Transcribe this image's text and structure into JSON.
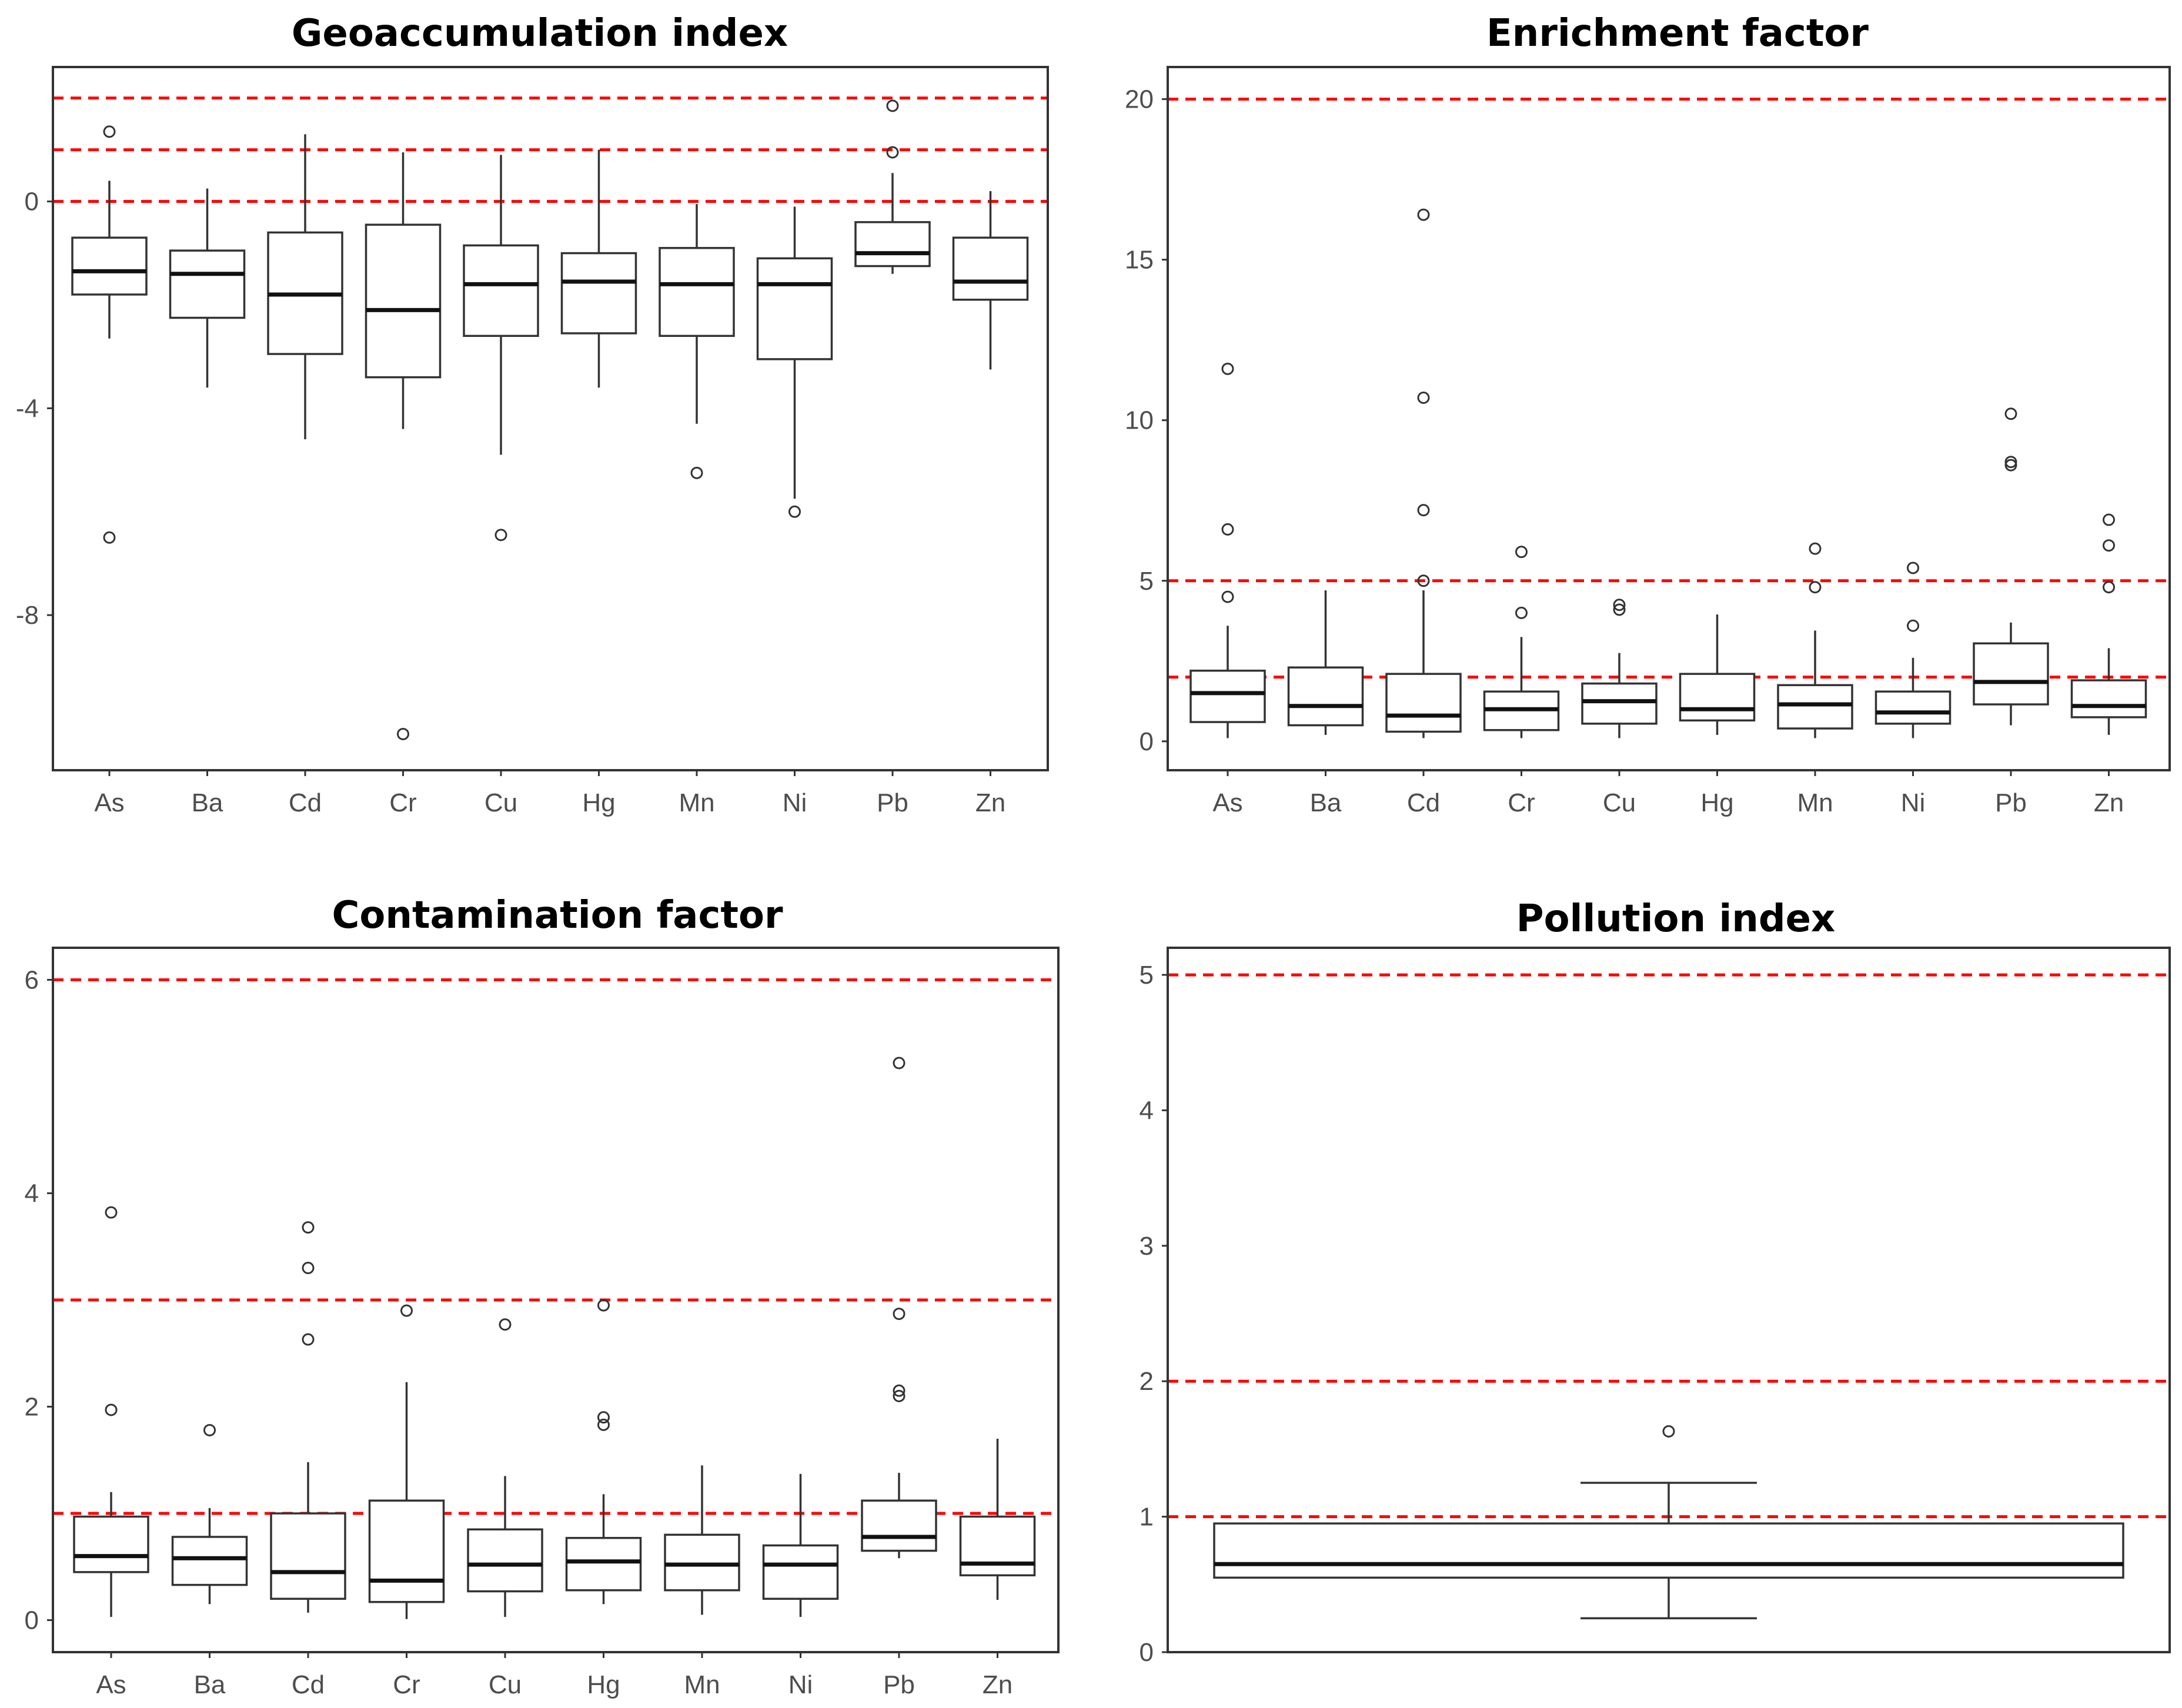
{
  "colors": {
    "reference_line": "#ff0000",
    "box_stroke": "#333333",
    "tick_text": "#4d4d4d"
  },
  "chart_data": [
    {
      "type": "box",
      "title": "Geoaccumulation index",
      "categories": [
        "As",
        "Ba",
        "Cd",
        "Cr",
        "Cu",
        "Hg",
        "Mn",
        "Ni",
        "Pb",
        "Zn"
      ],
      "ylim": [
        -11,
        2.6
      ],
      "yticks": [
        0,
        -4,
        -8
      ],
      "reference_lines": [
        0,
        1,
        2
      ],
      "boxes": [
        {
          "min": -2.65,
          "q1": -1.8,
          "median": -1.35,
          "q3": -0.7,
          "max": 0.4,
          "outliers": [
            1.35,
            -6.5
          ]
        },
        {
          "min": -3.6,
          "q1": -2.25,
          "median": -1.4,
          "q3": -0.95,
          "max": 0.25,
          "outliers": []
        },
        {
          "min": -4.6,
          "q1": -2.95,
          "median": -1.8,
          "q3": -0.6,
          "max": 1.3,
          "outliers": []
        },
        {
          "min": -4.4,
          "q1": -3.4,
          "median": -2.1,
          "q3": -0.45,
          "max": 0.95,
          "outliers": [
            -10.3
          ]
        },
        {
          "min": -4.9,
          "q1": -2.6,
          "median": -1.6,
          "q3": -0.85,
          "max": 0.9,
          "outliers": [
            -6.45
          ]
        },
        {
          "min": -3.6,
          "q1": -2.55,
          "median": -1.55,
          "q3": -1.0,
          "max": 1.0,
          "outliers": []
        },
        {
          "min": -4.3,
          "q1": -2.6,
          "median": -1.6,
          "q3": -0.9,
          "max": -0.05,
          "outliers": [
            -5.25
          ]
        },
        {
          "min": -5.75,
          "q1": -3.05,
          "median": -1.6,
          "q3": -1.1,
          "max": -0.1,
          "outliers": [
            -6.0
          ]
        },
        {
          "min": -1.4,
          "q1": -1.25,
          "median": -1.0,
          "q3": -0.4,
          "max": 0.55,
          "outliers": [
            0.95,
            1.85
          ]
        },
        {
          "min": -3.25,
          "q1": -1.9,
          "median": -1.55,
          "q3": -0.7,
          "max": 0.2,
          "outliers": []
        }
      ]
    },
    {
      "type": "box",
      "title": "Enrichment factor",
      "categories": [
        "As",
        "Ba",
        "Cd",
        "Cr",
        "Cu",
        "Hg",
        "Mn",
        "Ni",
        "Pb",
        "Zn"
      ],
      "ylim": [
        -0.9,
        21
      ],
      "yticks": [
        0,
        5,
        10,
        15,
        20
      ],
      "reference_lines": [
        2,
        5,
        20
      ],
      "boxes": [
        {
          "min": 0.1,
          "q1": 0.6,
          "median": 1.5,
          "q3": 2.2,
          "max": 3.6,
          "outliers": [
            4.5,
            6.6,
            11.6
          ]
        },
        {
          "min": 0.2,
          "q1": 0.5,
          "median": 1.1,
          "q3": 2.3,
          "max": 4.7,
          "outliers": []
        },
        {
          "min": 0.1,
          "q1": 0.3,
          "median": 0.8,
          "q3": 2.1,
          "max": 4.7,
          "outliers": [
            5.0,
            7.2,
            10.7,
            16.4
          ]
        },
        {
          "min": 0.1,
          "q1": 0.35,
          "median": 1.0,
          "q3": 1.55,
          "max": 3.25,
          "outliers": [
            4.0,
            5.9
          ]
        },
        {
          "min": 0.1,
          "q1": 0.55,
          "median": 1.25,
          "q3": 1.8,
          "max": 2.75,
          "outliers": [
            4.1,
            4.25
          ]
        },
        {
          "min": 0.2,
          "q1": 0.65,
          "median": 1.0,
          "q3": 2.1,
          "max": 3.95,
          "outliers": []
        },
        {
          "min": 0.1,
          "q1": 0.4,
          "median": 1.15,
          "q3": 1.75,
          "max": 3.45,
          "outliers": [
            4.8,
            6.0
          ]
        },
        {
          "min": 0.1,
          "q1": 0.55,
          "median": 0.9,
          "q3": 1.55,
          "max": 2.6,
          "outliers": [
            3.6,
            5.4
          ]
        },
        {
          "min": 0.5,
          "q1": 1.15,
          "median": 1.85,
          "q3": 3.05,
          "max": 3.7,
          "outliers": [
            8.6,
            8.7,
            10.2
          ]
        },
        {
          "min": 0.2,
          "q1": 0.75,
          "median": 1.1,
          "q3": 1.9,
          "max": 2.9,
          "outliers": [
            4.8,
            6.1,
            6.9
          ]
        }
      ]
    },
    {
      "type": "box",
      "title": "Contamination factor",
      "categories": [
        "As",
        "Ba",
        "Cd",
        "Cr",
        "Cu",
        "Hg",
        "Mn",
        "Ni",
        "Pb",
        "Zn"
      ],
      "ylim": [
        -0.3,
        6.3
      ],
      "yticks": [
        0,
        2,
        4,
        6
      ],
      "reference_lines": [
        1,
        3,
        6
      ],
      "boxes": [
        {
          "min": 0.03,
          "q1": 0.45,
          "median": 0.6,
          "q3": 0.97,
          "max": 1.2,
          "outliers": [
            1.97,
            3.82
          ]
        },
        {
          "min": 0.15,
          "q1": 0.33,
          "median": 0.58,
          "q3": 0.78,
          "max": 1.05,
          "outliers": [
            1.78
          ]
        },
        {
          "min": 0.07,
          "q1": 0.2,
          "median": 0.45,
          "q3": 1.0,
          "max": 1.48,
          "outliers": [
            2.63,
            3.3,
            3.68
          ]
        },
        {
          "min": 0.01,
          "q1": 0.17,
          "median": 0.37,
          "q3": 1.12,
          "max": 2.23,
          "outliers": [
            2.9
          ]
        },
        {
          "min": 0.03,
          "q1": 0.27,
          "median": 0.52,
          "q3": 0.85,
          "max": 1.35,
          "outliers": [
            2.77
          ]
        },
        {
          "min": 0.15,
          "q1": 0.28,
          "median": 0.55,
          "q3": 0.77,
          "max": 1.18,
          "outliers": [
            1.83,
            1.9,
            2.95
          ]
        },
        {
          "min": 0.05,
          "q1": 0.28,
          "median": 0.52,
          "q3": 0.8,
          "max": 1.45,
          "outliers": []
        },
        {
          "min": 0.03,
          "q1": 0.2,
          "median": 0.52,
          "q3": 0.7,
          "max": 1.37,
          "outliers": []
        },
        {
          "min": 0.58,
          "q1": 0.65,
          "median": 0.78,
          "q3": 1.12,
          "max": 1.38,
          "outliers": [
            2.1,
            2.15,
            2.87,
            5.22
          ]
        },
        {
          "min": 0.19,
          "q1": 0.42,
          "median": 0.53,
          "q3": 0.97,
          "max": 1.7,
          "outliers": []
        }
      ]
    },
    {
      "type": "box",
      "title": "Pollution index",
      "categories": [],
      "ylim": [
        0,
        5.2
      ],
      "yticks": [
        0,
        1,
        2,
        3,
        4,
        5
      ],
      "reference_lines": [
        1,
        2,
        5
      ],
      "boxes": [
        {
          "min": 0.25,
          "q1": 0.55,
          "median": 0.65,
          "q3": 0.95,
          "max": 1.25,
          "outliers": [
            1.63
          ]
        }
      ]
    }
  ]
}
